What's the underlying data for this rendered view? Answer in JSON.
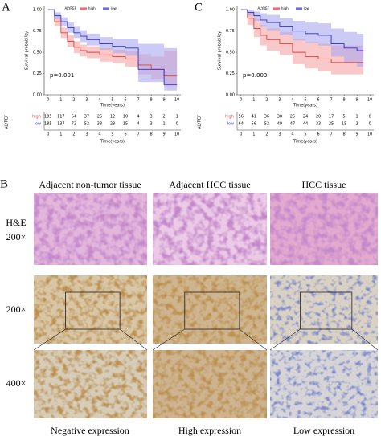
{
  "chart_data": [
    {
      "type": "step",
      "panel": "A",
      "legend_title": "ALYREF",
      "ylabel": "Survival probability",
      "xlabel": "Time(years)",
      "annotation": "p=0.001",
      "x": [
        0,
        0.5,
        1,
        1.5,
        2,
        2.5,
        3,
        4,
        5,
        6,
        7,
        8,
        9,
        10
      ],
      "series": [
        {
          "name": "high",
          "color": "#e0403f",
          "band_color": "#f5a3a3",
          "values": [
            1,
            0.86,
            0.73,
            0.63,
            0.56,
            0.52,
            0.5,
            0.47,
            0.45,
            0.42,
            0.35,
            0.3,
            0.22,
            0.22
          ],
          "lower": [
            1,
            0.81,
            0.67,
            0.56,
            0.49,
            0.45,
            0.43,
            0.39,
            0.37,
            0.33,
            0.24,
            0.18,
            0.1,
            0.1
          ],
          "upper": [
            1,
            0.91,
            0.79,
            0.7,
            0.63,
            0.59,
            0.57,
            0.55,
            0.53,
            0.51,
            0.48,
            0.45,
            0.52,
            0.52
          ]
        },
        {
          "name": "low",
          "color": "#3030c8",
          "band_color": "#a9a9ee",
          "values": [
            1,
            0.93,
            0.86,
            0.79,
            0.73,
            0.69,
            0.65,
            0.6,
            0.57,
            0.55,
            0.3,
            0.3,
            0.12,
            0.12
          ],
          "lower": [
            1,
            0.89,
            0.81,
            0.73,
            0.67,
            0.62,
            0.58,
            0.53,
            0.49,
            0.46,
            0.15,
            0.15,
            0.05,
            0.05
          ],
          "upper": [
            1,
            0.97,
            0.91,
            0.85,
            0.8,
            0.76,
            0.72,
            0.68,
            0.66,
            0.66,
            0.6,
            0.6,
            0.55,
            0.55
          ]
        }
      ],
      "xlim": [
        -0.3,
        10.3
      ],
      "xticks": [
        0,
        1,
        2,
        3,
        4,
        5,
        6,
        7,
        8,
        9,
        10
      ],
      "ylim": [
        0,
        1.04
      ],
      "yticks": [
        {
          "value": 0,
          "label": "0.00"
        },
        {
          "value": 0.25,
          "label": "0.25"
        },
        {
          "value": 0.5,
          "label": "0.50"
        },
        {
          "value": 0.75,
          "label": "0.75"
        },
        {
          "value": 1,
          "label": "1.00"
        }
      ],
      "risk_table": {
        "title": "ALYREF",
        "xlabel": "Time(years)",
        "rows": [
          {
            "name": "high",
            "values": [
              185,
              117,
              54,
              37,
              25,
              12,
              10,
              4,
              3,
              2,
              1
            ]
          },
          {
            "name": "low",
            "values": [
              185,
              137,
              72,
              52,
              38,
              28,
              15,
              4,
              3,
              1,
              0
            ]
          }
        ]
      }
    },
    {
      "type": "step",
      "panel": "C",
      "legend_title": "ALYREF",
      "ylabel": "Survival probability",
      "xlabel": "Time(years)",
      "annotation": "p=0.003",
      "x": [
        0,
        0.5,
        1,
        1.5,
        2,
        3,
        4,
        5,
        6,
        7,
        8,
        9,
        9.5
      ],
      "series": [
        {
          "name": "high",
          "color": "#e0403f",
          "band_color": "#f5a3a3",
          "values": [
            1,
            0.9,
            0.78,
            0.7,
            0.65,
            0.6,
            0.5,
            0.45,
            0.42,
            0.38,
            0.38,
            0.38,
            0.38
          ],
          "lower": [
            1,
            0.82,
            0.68,
            0.58,
            0.52,
            0.47,
            0.36,
            0.31,
            0.28,
            0.24,
            0.24,
            0.24,
            0.24
          ],
          "upper": [
            1,
            0.97,
            0.89,
            0.82,
            0.78,
            0.74,
            0.66,
            0.62,
            0.6,
            0.58,
            0.58,
            0.58,
            0.58
          ]
        },
        {
          "name": "low",
          "color": "#3030c8",
          "band_color": "#a9a9ee",
          "values": [
            1,
            0.97,
            0.93,
            0.88,
            0.85,
            0.8,
            0.75,
            0.72,
            0.7,
            0.6,
            0.55,
            0.52,
            0.52
          ],
          "lower": [
            1,
            0.93,
            0.87,
            0.8,
            0.76,
            0.7,
            0.64,
            0.61,
            0.58,
            0.45,
            0.38,
            0.33,
            0.33
          ],
          "upper": [
            1,
            1,
            0.98,
            0.96,
            0.94,
            0.9,
            0.87,
            0.85,
            0.84,
            0.78,
            0.74,
            0.72,
            0.72
          ]
        }
      ],
      "xlim": [
        -0.3,
        10.3
      ],
      "xticks": [
        0,
        1,
        2,
        3,
        4,
        5,
        6,
        7,
        8,
        9,
        10
      ],
      "ylim": [
        0,
        1.04
      ],
      "yticks": [
        {
          "value": 0,
          "label": "0.00"
        },
        {
          "value": 0.25,
          "label": "0.25"
        },
        {
          "value": 0.5,
          "label": "0.50"
        },
        {
          "value": 0.75,
          "label": "0.75"
        },
        {
          "value": 1,
          "label": "1.00"
        }
      ],
      "risk_table": {
        "title": "ALYREF",
        "xlabel": "Time(years)",
        "rows": [
          {
            "name": "high",
            "values": [
              56,
              41,
              36,
              30,
              25,
              24,
              20,
              17,
              5,
              1,
              0
            ]
          },
          {
            "name": "low",
            "values": [
              64,
              56,
              52,
              49,
              47,
              44,
              33,
              25,
              15,
              2,
              0
            ]
          }
        ]
      }
    }
  ],
  "panel_b": {
    "label": "B",
    "columns": [
      "Adjacent non-tumor tissue",
      "Adjacent HCC tissue",
      "HCC tissue"
    ],
    "rows": [
      "H&E\n200×",
      "200×",
      "400×"
    ],
    "captions": [
      "Negative expression",
      "High expression",
      "Low expression"
    ]
  }
}
